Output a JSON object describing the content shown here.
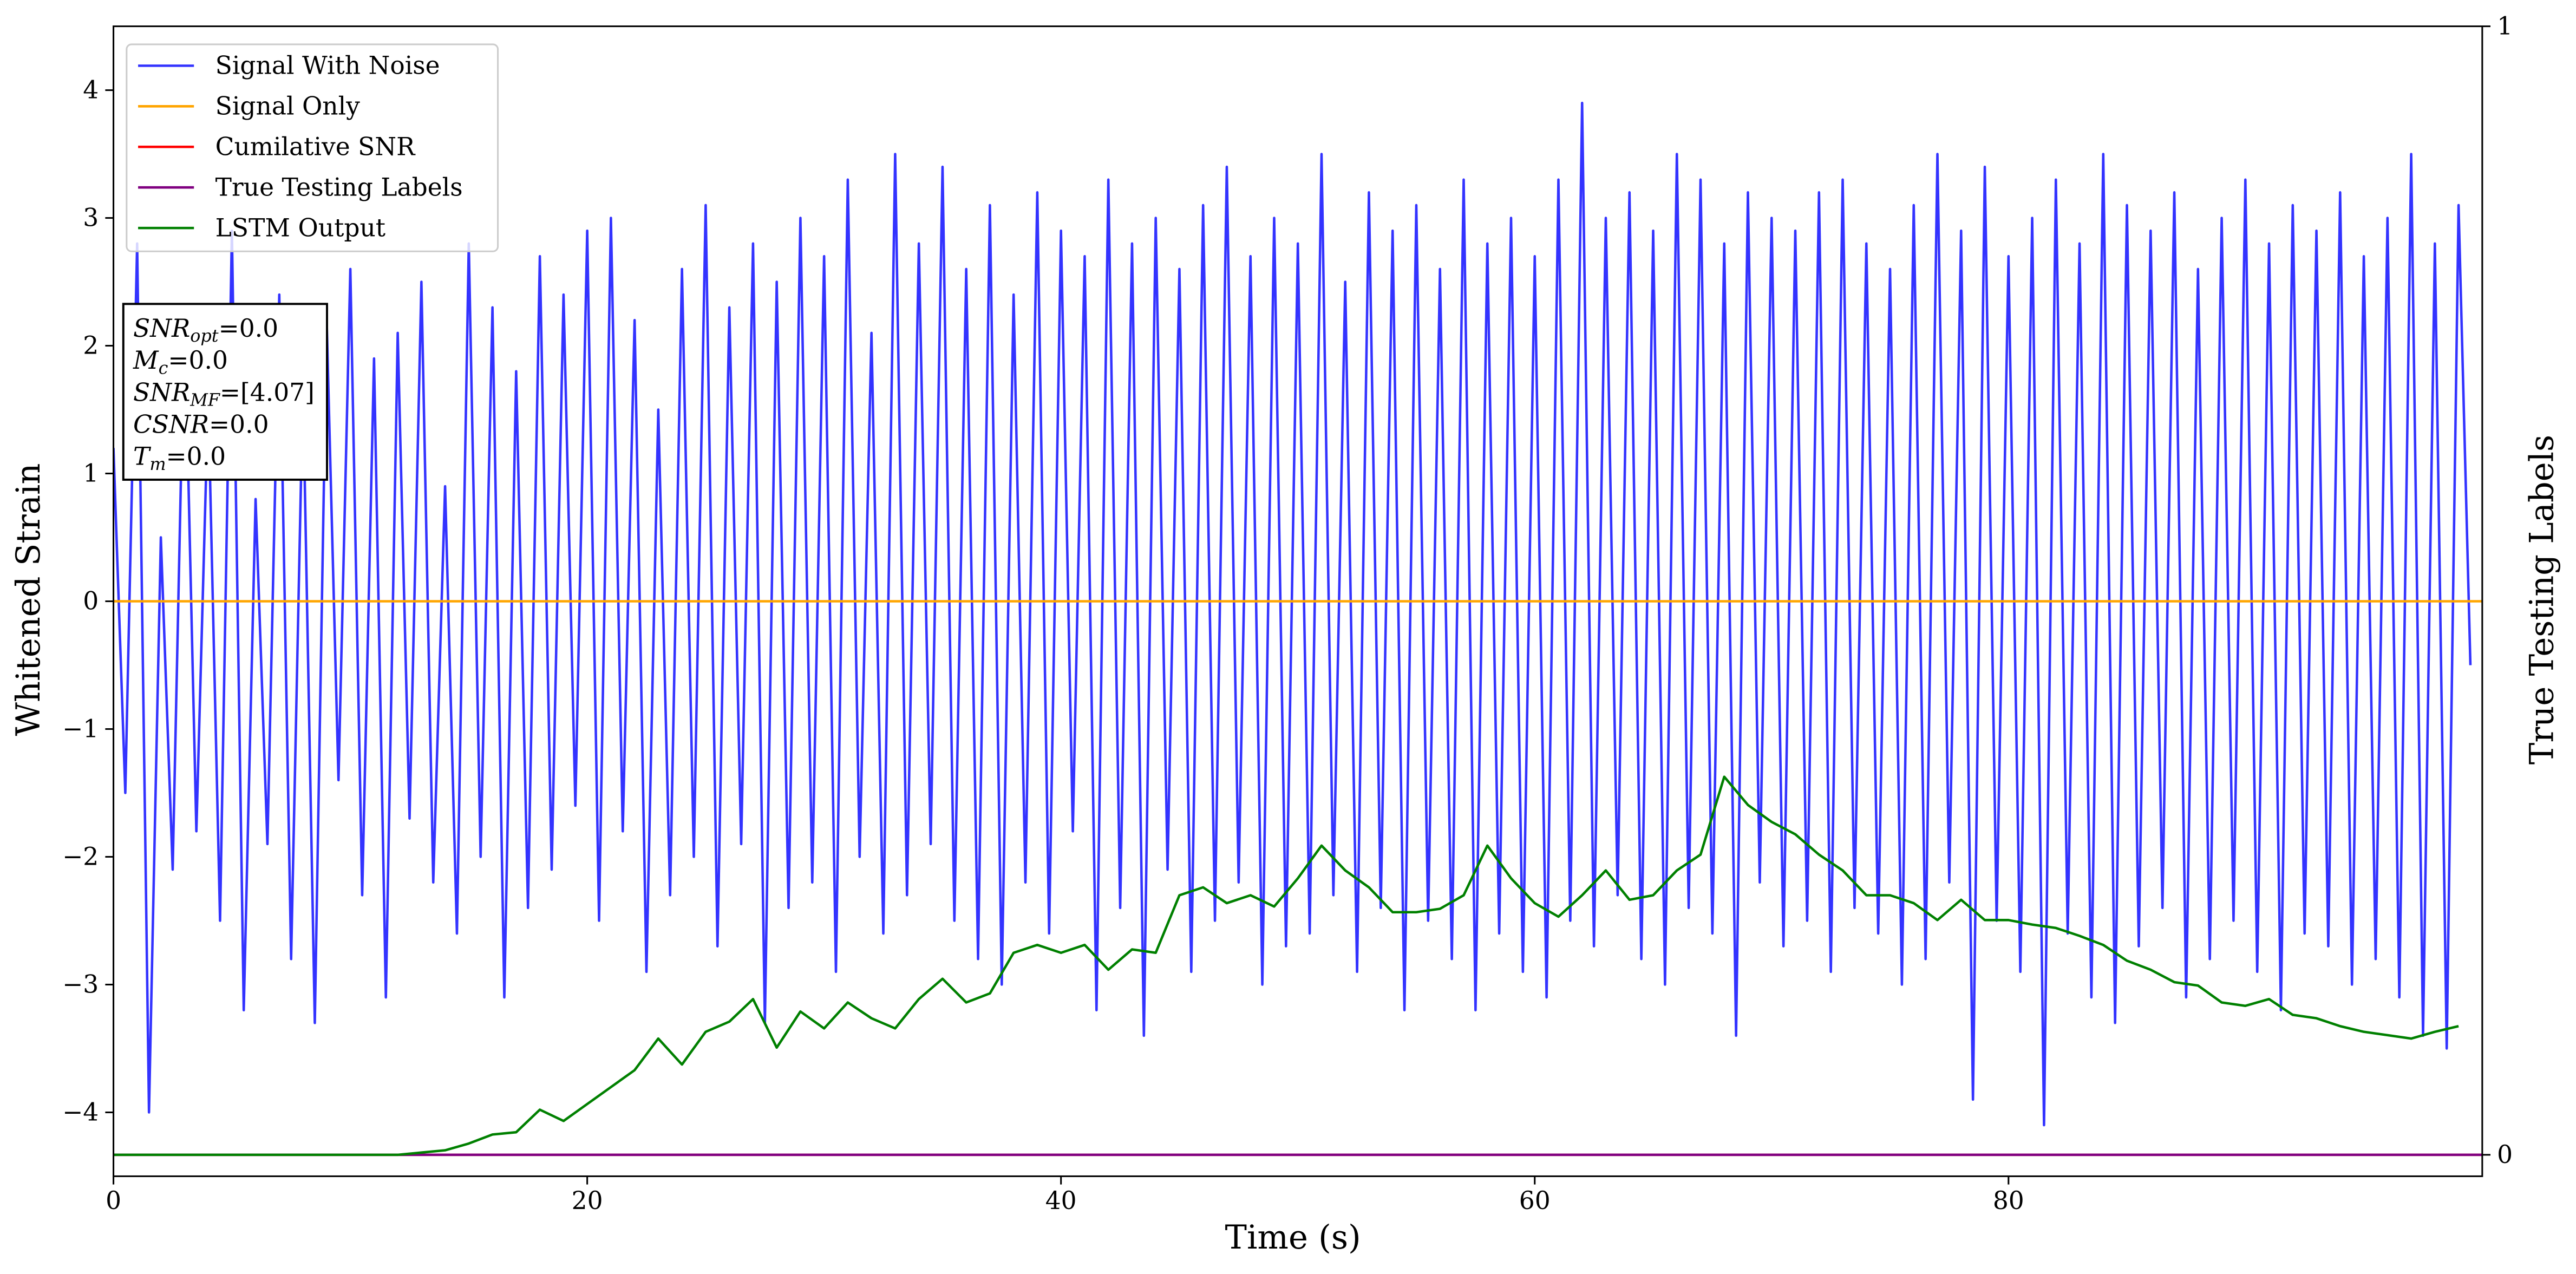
{
  "chart_data": {
    "type": "line",
    "xlabel": "Time (s)",
    "ylabel": "Whitened Strain",
    "y2label": "True Testing Labels",
    "xlim": [
      0,
      100
    ],
    "ylim": [
      -4.5,
      4.5
    ],
    "y2lim": [
      -0.019,
      1
    ],
    "xticks": [
      0,
      20,
      40,
      60,
      80
    ],
    "yticks": [
      {
        "value": -4,
        "label": "−4"
      },
      {
        "value": -3,
        "label": "−3"
      },
      {
        "value": -2,
        "label": "−2"
      },
      {
        "value": -1,
        "label": "−1"
      },
      0,
      1,
      2,
      3,
      4
    ],
    "y2ticks": [
      0,
      1
    ],
    "grid": false,
    "legend": "upper left",
    "annotations": [
      {
        "base": "SNR",
        "sub": "opt",
        "rest": "=0.0"
      },
      {
        "base": "M",
        "sub": "c",
        "rest": "=0.0"
      },
      {
        "base": "SNR",
        "sub": "MF",
        "rest": "=[4.07]"
      },
      {
        "base": "CSNR",
        "sub": "",
        "rest": "=0.0"
      },
      {
        "base": "T",
        "sub": "m",
        "rest": "=0.0"
      }
    ],
    "series": [
      {
        "name": "Signal With Noise",
        "color": "#3333ff",
        "axis": "y",
        "x": [
          0,
          0.5,
          1,
          1.5,
          2,
          2.5,
          3,
          3.5,
          4,
          4.5,
          5,
          5.5,
          6,
          6.5,
          7,
          7.5,
          8,
          8.5,
          9,
          9.5,
          10,
          10.5,
          11,
          11.5,
          12,
          12.5,
          13,
          13.5,
          14,
          14.5,
          15,
          15.5,
          16,
          16.5,
          17,
          17.5,
          18,
          18.5,
          19,
          19.5,
          20,
          20.5,
          21,
          21.5,
          22,
          22.5,
          23,
          23.5,
          24,
          24.5,
          25,
          25.5,
          26,
          26.5,
          27,
          27.5,
          28,
          28.5,
          29,
          29.5,
          30,
          30.5,
          31,
          31.5,
          32,
          32.5,
          33,
          33.5,
          34,
          34.5,
          35,
          35.5,
          36,
          36.5,
          37,
          37.5,
          38,
          38.5,
          39,
          39.5,
          40,
          40.5,
          41,
          41.5,
          42,
          42.5,
          43,
          43.5,
          44,
          44.5,
          45,
          45.5,
          46,
          46.5,
          47,
          47.5,
          48,
          48.5,
          49,
          49.5,
          50,
          50.5,
          51,
          51.5,
          52,
          52.5,
          53,
          53.5,
          54,
          54.5,
          55,
          55.5,
          56,
          56.5,
          57,
          57.5,
          58,
          58.5,
          59,
          59.5,
          60,
          60.5,
          61,
          61.5,
          62,
          62.5,
          63,
          63.5,
          64,
          64.5,
          65,
          65.5,
          66,
          66.5,
          67,
          67.5,
          68,
          68.5,
          69,
          69.5,
          70,
          70.5,
          71,
          71.5,
          72,
          72.5,
          73,
          73.5,
          74,
          74.5,
          75,
          75.5,
          76,
          76.5,
          77,
          77.5,
          78,
          78.5,
          79,
          79.5,
          80,
          80.5,
          81,
          81.5,
          82,
          82.5,
          83,
          83.5,
          84,
          84.5,
          85,
          85.5,
          86,
          86.5,
          87,
          87.5,
          88,
          88.5,
          89,
          89.5,
          90,
          90.5,
          91,
          91.5,
          92,
          92.5,
          93,
          93.5,
          94,
          94.5,
          95,
          95.5,
          96,
          96.5,
          97,
          97.5,
          98,
          98.5,
          99,
          99.5
        ],
        "values": [
          1.2,
          -1.5,
          2.8,
          -4.0,
          0.5,
          -2.1,
          2.3,
          -1.8,
          1.6,
          -2.5,
          2.9,
          -3.2,
          0.8,
          -1.9,
          2.4,
          -2.8,
          1.7,
          -3.3,
          2.2,
          -1.4,
          2.6,
          -2.3,
          1.9,
          -3.1,
          2.1,
          -1.7,
          2.5,
          -2.2,
          0.9,
          -2.6,
          2.8,
          -2.0,
          2.3,
          -3.1,
          1.8,
          -2.4,
          2.7,
          -2.1,
          2.4,
          -1.6,
          2.9,
          -2.5,
          3.0,
          -1.8,
          2.2,
          -2.9,
          1.5,
          -2.3,
          2.6,
          -2.0,
          3.1,
          -2.7,
          2.3,
          -1.9,
          2.8,
          -3.3,
          2.5,
          -2.4,
          3.0,
          -2.2,
          2.7,
          -2.9,
          3.3,
          -2.0,
          2.1,
          -2.6,
          3.5,
          -2.3,
          2.8,
          -1.9,
          3.4,
          -2.5,
          2.6,
          -2.8,
          3.1,
          -3.0,
          2.4,
          -2.2,
          3.2,
          -2.6,
          2.9,
          -1.8,
          2.7,
          -3.2,
          3.3,
          -2.4,
          2.8,
          -3.4,
          3.0,
          -2.1,
          2.6,
          -2.9,
          3.1,
          -2.5,
          3.4,
          -2.2,
          2.7,
          -3.0,
          3.0,
          -2.7,
          2.8,
          -2.6,
          3.5,
          -2.3,
          2.5,
          -2.9,
          3.2,
          -2.4,
          2.9,
          -3.2,
          3.1,
          -2.5,
          2.6,
          -2.8,
          3.3,
          -3.2,
          2.8,
          -2.6,
          3.0,
          -2.9,
          2.7,
          -3.1,
          3.3,
          -2.5,
          3.9,
          -2.7,
          3.0,
          -2.3,
          3.2,
          -2.8,
          2.9,
          -3.0,
          3.5,
          -2.4,
          3.3,
          -2.6,
          2.8,
          -3.4,
          3.2,
          -2.2,
          3.0,
          -2.7,
          2.9,
          -2.5,
          3.2,
          -2.9,
          3.3,
          -2.4,
          2.8,
          -2.6,
          2.6,
          -3.0,
          3.1,
          -2.8,
          3.5,
          -2.2,
          2.9,
          -3.9,
          3.4,
          -2.5,
          2.7,
          -2.9,
          3.0,
          -4.1,
          3.3,
          -2.6,
          2.8,
          -3.1,
          3.5,
          -3.3,
          3.1,
          -2.7,
          2.9,
          -2.4,
          3.2,
          -3.1,
          2.6,
          -2.8,
          3.0,
          -2.5,
          3.3,
          -2.9,
          2.8,
          -3.2,
          3.1,
          -2.6,
          2.9,
          -2.7,
          3.2,
          -3.0,
          2.7,
          -2.8,
          3.0,
          -3.1,
          3.5,
          -3.4,
          2.8,
          -3.5,
          3.1,
          -0.5
        ]
      },
      {
        "name": "Signal Only",
        "color": "#ffa500",
        "axis": "y",
        "x": [
          0,
          100
        ],
        "values": [
          0,
          0
        ]
      },
      {
        "name": "Cumilative SNR",
        "color": "#ff0000",
        "axis": "y2",
        "x": [
          0,
          100
        ],
        "values": [
          0,
          0
        ]
      },
      {
        "name": "True Testing Labels",
        "color": "#800080",
        "axis": "y2",
        "x": [
          0,
          100
        ],
        "values": [
          0,
          0
        ]
      },
      {
        "name": "LSTM Output",
        "color": "#008000",
        "axis": "y2",
        "x": [
          0,
          1,
          2,
          3,
          4,
          5,
          6,
          7,
          8,
          9,
          10,
          11,
          12,
          13,
          14,
          15,
          16,
          17,
          18,
          19,
          20,
          21,
          22,
          23,
          24,
          25,
          26,
          27,
          28,
          29,
          30,
          31,
          32,
          33,
          34,
          35,
          36,
          37,
          38,
          39,
          40,
          41,
          42,
          43,
          44,
          45,
          46,
          47,
          48,
          49,
          50,
          51,
          52,
          53,
          54,
          55,
          56,
          57,
          58,
          59,
          60,
          61,
          62,
          63,
          64,
          65,
          66,
          67,
          68,
          69,
          70,
          71,
          72,
          73,
          74,
          75,
          76,
          77,
          78,
          79,
          80,
          81,
          82,
          83,
          84,
          85,
          86,
          87,
          88,
          89,
          90,
          91,
          92,
          93,
          94,
          95,
          96,
          97,
          98,
          99
        ],
        "values": [
          0,
          0,
          0,
          0,
          0,
          0,
          0,
          0,
          0,
          0,
          0,
          0,
          0,
          0.002,
          0.004,
          0.01,
          0.018,
          0.02,
          0.04,
          0.03,
          0.045,
          0.06,
          0.075,
          0.103,
          0.08,
          0.109,
          0.118,
          0.138,
          0.095,
          0.127,
          0.112,
          0.135,
          0.121,
          0.112,
          0.138,
          0.156,
          0.135,
          0.143,
          0.179,
          0.186,
          0.179,
          0.186,
          0.164,
          0.182,
          0.179,
          0.23,
          0.237,
          0.223,
          0.23,
          0.22,
          0.245,
          0.274,
          0.252,
          0.237,
          0.215,
          0.215,
          0.218,
          0.23,
          0.274,
          0.245,
          0.223,
          0.211,
          0.23,
          0.252,
          0.226,
          0.23,
          0.252,
          0.266,
          0.335,
          0.31,
          0.295,
          0.284,
          0.266,
          0.252,
          0.23,
          0.23,
          0.223,
          0.208,
          0.226,
          0.208,
          0.208,
          0.204,
          0.201,
          0.194,
          0.186,
          0.172,
          0.164,
          0.153,
          0.15,
          0.135,
          0.132,
          0.138,
          0.124,
          0.121,
          0.114,
          0.109,
          0.106,
          0.103,
          0.109,
          0.114
        ]
      }
    ]
  }
}
